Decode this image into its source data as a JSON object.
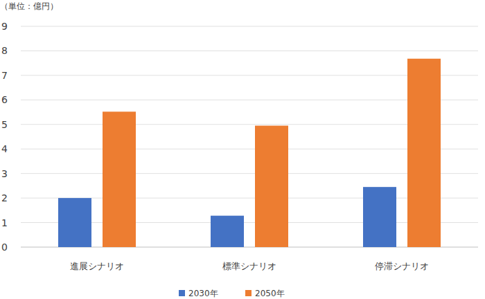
{
  "chart_data": {
    "type": "bar",
    "y_label": "（単位：億円）",
    "categories": [
      "進展シナリオ",
      "標準シナリオ",
      "停滞シナリオ"
    ],
    "series": [
      {
        "name": "2030年",
        "color": "#4472c4",
        "values": [
          2.0,
          1.28,
          2.45
        ]
      },
      {
        "name": "2050年",
        "color": "#ed7d31",
        "values": [
          5.52,
          4.95,
          7.68
        ]
      }
    ],
    "ylim": [
      0,
      9
    ],
    "yticks": [
      0,
      1,
      2,
      3,
      4,
      5,
      6,
      7,
      8,
      9
    ],
    "grid": true,
    "legend": "bottom"
  }
}
